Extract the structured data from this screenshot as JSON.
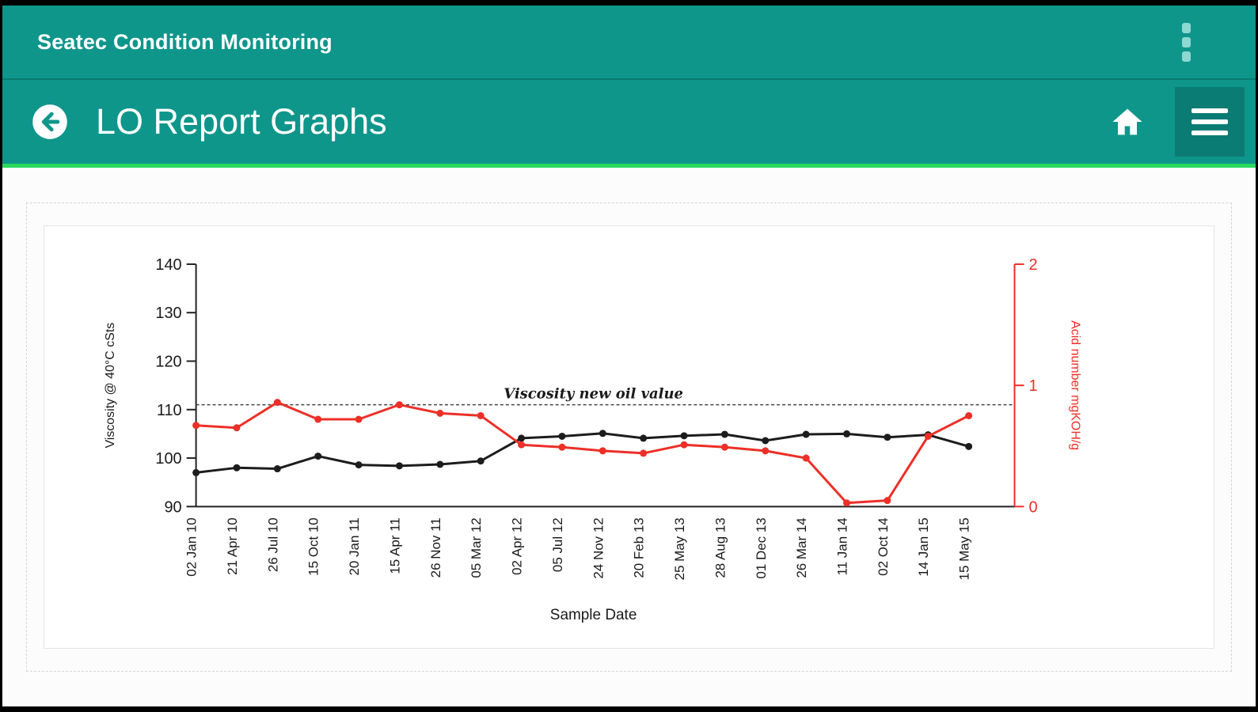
{
  "app_bar": {
    "title": "Seatec Condition Monitoring",
    "overflow_icon": "kebab-menu-icon"
  },
  "toolbar": {
    "title": "LO Report Graphs",
    "back_icon": "arrow-left-circle-icon",
    "home_icon": "home-icon",
    "menu_icon": "hamburger-menu-icon"
  },
  "colors": {
    "app_bar_teal": "#0e968b",
    "accent_green": "#2bda5e",
    "series_viscosity": "#1c1c1c",
    "series_acid": "#ec2f27"
  },
  "chart_data": {
    "type": "line",
    "title": "",
    "xlabel": "Sample Date",
    "y_left_label": "Viscosity @ 40°C cSts",
    "y_right_label": "Acid number mgKOH/g",
    "y_left_range": [
      90,
      140
    ],
    "y_right_range": [
      0,
      2
    ],
    "y_left_ticks": [
      90,
      100,
      110,
      120,
      130,
      140
    ],
    "y_right_ticks": [
      0,
      1,
      2
    ],
    "grid": false,
    "legend": "none",
    "reference_line": {
      "label": "Viscosity new oil value",
      "y_left": 111
    },
    "categories": [
      "02 Jan 10",
      "21 Apr 10",
      "26 Jul 10",
      "15 Oct 10",
      "20 Jan 11",
      "15 Apr 11",
      "26 Nov 11",
      "05 Mar 12",
      "02 Apr 12",
      "05 Jul 12",
      "24 Nov 12",
      "20 Feb 13",
      "25 May 13",
      "28 Aug 13",
      "01 Dec 13",
      "26 Mar 14",
      "11 Jan 14",
      "02 Oct 14",
      "14 Jan 15",
      "15 May 15"
    ],
    "series": [
      {
        "name": "Viscosity @ 40°C cSts",
        "axis": "left",
        "color": "#1c1c1c",
        "values": [
          97.0,
          98.0,
          97.8,
          100.4,
          98.6,
          98.4,
          98.7,
          99.4,
          104.1,
          104.5,
          105.1,
          104.1,
          104.6,
          104.9,
          103.6,
          104.9,
          105.0,
          104.3,
          104.8,
          102.4
        ]
      },
      {
        "name": "Acid number mgKOH/g",
        "axis": "right",
        "color": "#ec2f27",
        "values": [
          0.67,
          0.65,
          0.86,
          0.72,
          0.72,
          0.84,
          0.77,
          0.75,
          0.51,
          0.49,
          0.46,
          0.44,
          0.51,
          0.49,
          0.46,
          0.4,
          0.03,
          0.05,
          0.58,
          0.75
        ]
      }
    ]
  }
}
